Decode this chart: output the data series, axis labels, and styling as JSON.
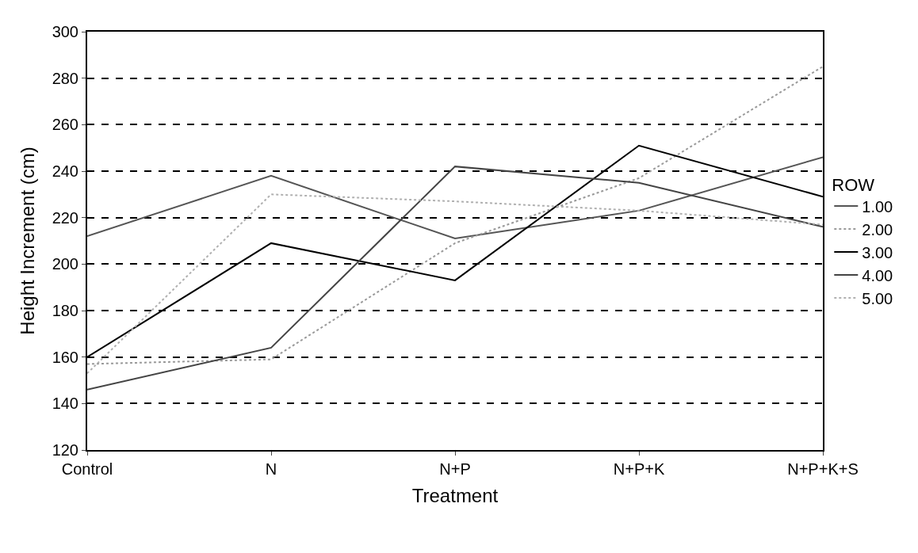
{
  "chart_data": {
    "type": "line",
    "xlabel": "Treatment",
    "ylabel": "Height Increment (cm)",
    "legend_title": "ROW",
    "categories": [
      "Control",
      "N",
      "N+P",
      "N+P+K",
      "N+P+K+S"
    ],
    "series": [
      {
        "name": "1.00",
        "color": "#555555",
        "values": [
          212,
          238,
          211,
          223,
          246
        ]
      },
      {
        "name": "2.00",
        "color": "#9a9a9a",
        "line_style": "dotted",
        "values": [
          157,
          159,
          209,
          237,
          285
        ]
      },
      {
        "name": "3.00",
        "color": "#000000",
        "values": [
          160,
          209,
          193,
          251,
          229
        ]
      },
      {
        "name": "4.00",
        "color": "#444444",
        "values": [
          146,
          164,
          242,
          235,
          216
        ]
      },
      {
        "name": "5.00",
        "color": "#b0b0b0",
        "line_style": "dotted",
        "values": [
          153,
          230,
          227,
          223,
          217
        ]
      }
    ],
    "ylim": [
      120,
      300
    ],
    "yticks": [
      120,
      140,
      160,
      180,
      200,
      220,
      240,
      260,
      280,
      300
    ],
    "grid": "y",
    "legend": "right",
    "marker": "none",
    "line_style": "solid"
  }
}
